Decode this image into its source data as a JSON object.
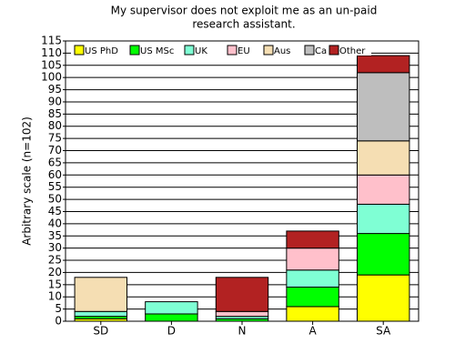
{
  "chart_data": {
    "type": "stacked_bar",
    "title": [
      "My supervisor does not exploit me as an un-paid",
      "research assistant."
    ],
    "y_label": "Arbitrary scale (n=102)",
    "categories": [
      "SD",
      "D",
      "N",
      "A",
      "SA"
    ],
    "series": [
      {
        "name": "US PhD",
        "color": "#ffff00",
        "values": [
          1,
          0,
          0,
          6,
          19
        ]
      },
      {
        "name": "US MSc",
        "color": "#00ff00",
        "values": [
          1,
          3,
          1,
          8,
          17
        ]
      },
      {
        "name": "UK",
        "color": "#7fffd4",
        "values": [
          2,
          5,
          1,
          7,
          12
        ]
      },
      {
        "name": "EU",
        "color": "#ffc0cb",
        "values": [
          0,
          0,
          2,
          9,
          12
        ]
      },
      {
        "name": "Aus",
        "color": "#f5deb3",
        "values": [
          14,
          0,
          0,
          0,
          14
        ]
      },
      {
        "name": "Ca",
        "color": "#bebebe",
        "values": [
          0,
          0,
          0,
          0,
          28
        ]
      },
      {
        "name": "Other",
        "color": "#b22222",
        "values": [
          0,
          0,
          14,
          7,
          7
        ]
      }
    ],
    "ylim": [
      0,
      115
    ],
    "yticks": [
      0,
      5,
      10,
      15,
      20,
      25,
      30,
      35,
      40,
      45,
      50,
      55,
      60,
      65,
      70,
      75,
      80,
      85,
      90,
      95,
      100,
      105,
      110,
      115
    ],
    "grid": true
  }
}
